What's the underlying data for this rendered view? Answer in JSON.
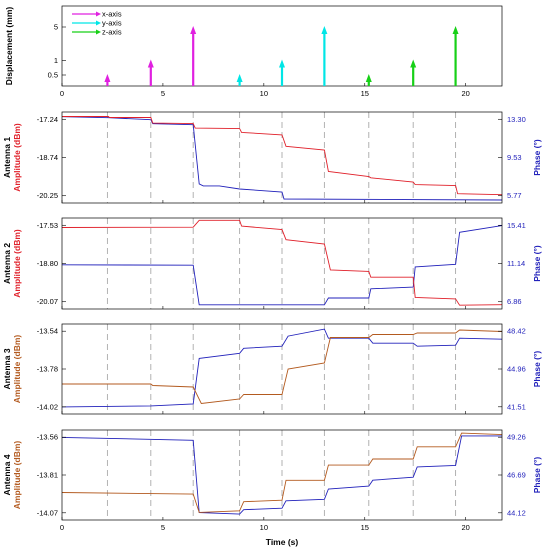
{
  "chart_data": [
    {
      "type": "bar",
      "ylabel": "Displacement (mm)",
      "yticks": [
        "0.5",
        "1",
        "5"
      ],
      "xticks": [
        "0",
        "5",
        "10",
        "15",
        "20"
      ],
      "xlim": [
        0,
        21.8
      ],
      "legend": {
        "placement": "top-left",
        "entries": [
          "x-axis",
          "y-axis",
          "z-axis"
        ]
      },
      "colors": {
        "x-axis": "#e020e0",
        "y-axis": "#00e6e6",
        "z-axis": "#17d017"
      },
      "series": [
        {
          "name": "x-axis",
          "x": [
            2.25,
            4.4,
            6.5
          ],
          "values": [
            0.5,
            1,
            5
          ]
        },
        {
          "name": "y-axis",
          "x": [
            8.8,
            10.9,
            13.0
          ],
          "values": [
            0.5,
            1,
            5
          ]
        },
        {
          "name": "z-axis",
          "x": [
            15.2,
            17.4,
            19.5
          ],
          "values": [
            0.5,
            1,
            5
          ]
        }
      ]
    },
    {
      "type": "line",
      "antenna_label": "Antenna 1",
      "ylabel_left": "Amplitude (dBm)",
      "ylabel_right": "Phase (°)",
      "yticks_left": [
        "-17.24",
        "-18.74",
        "-20.25"
      ],
      "yticks_right": [
        "13.30",
        "9.53",
        "5.77"
      ],
      "ylim_left": [
        -20.55,
        -16.94
      ],
      "ylim_right": [
        5.0,
        14.07
      ],
      "xlim": [
        0,
        21.8
      ],
      "colors": {
        "amplitude": "#e0202a",
        "phase": "#2222bb"
      },
      "amplitude": {
        "x": [
          0,
          2.3,
          2.35,
          4.4,
          4.5,
          6.5,
          6.6,
          8.8,
          8.9,
          10.9,
          11.1,
          13.0,
          13.2,
          15.2,
          15.3,
          17.4,
          17.5,
          19.5,
          19.6,
          21.8
        ],
        "y": [
          -17.12,
          -17.12,
          -17.16,
          -17.16,
          -17.38,
          -17.4,
          -17.58,
          -17.6,
          -17.75,
          -17.85,
          -18.3,
          -18.45,
          -19.3,
          -19.5,
          -19.55,
          -19.72,
          -19.82,
          -19.86,
          -20.18,
          -20.22
        ]
      },
      "phase": {
        "x": [
          0,
          2.3,
          4.4,
          4.5,
          6.5,
          6.8,
          7.0,
          7.8,
          8.8,
          10.9,
          11.0,
          21.8
        ],
        "y": [
          13.6,
          13.5,
          13.3,
          12.9,
          12.8,
          6.9,
          6.7,
          6.7,
          6.4,
          6.1,
          5.4,
          5.3
        ]
      }
    },
    {
      "type": "line",
      "antenna_label": "Antenna 2",
      "ylabel_left": "Amplitude (dBm)",
      "ylabel_right": "Phase (°)",
      "yticks_left": [
        "-17.53",
        "-18.80",
        "-20.07"
      ],
      "yticks_right": [
        "15.41",
        "11.14",
        "6.86"
      ],
      "ylim_left": [
        -20.35,
        -17.2
      ],
      "ylim_right": [
        5.9,
        16.7
      ],
      "xlim": [
        0,
        21.8
      ],
      "colors": {
        "amplitude": "#e0202a",
        "phase": "#2222bb"
      },
      "amplitude": {
        "x": [
          0,
          6.5,
          6.8,
          8.8,
          8.9,
          10.9,
          11.1,
          13.0,
          13.3,
          15.2,
          15.3,
          17.4,
          17.5,
          19.5,
          19.7,
          21.8
        ],
        "y": [
          -17.53,
          -17.52,
          -17.28,
          -17.28,
          -17.48,
          -17.6,
          -17.95,
          -18.1,
          -19.0,
          -19.05,
          -19.25,
          -19.25,
          -19.95,
          -20.0,
          -20.22,
          -20.2
        ]
      },
      "phase": {
        "x": [
          0,
          6.5,
          6.8,
          13.0,
          13.2,
          15.2,
          15.3,
          17.4,
          17.5,
          19.5,
          19.7,
          21.8
        ],
        "y": [
          11.14,
          11.1,
          6.4,
          6.4,
          7.2,
          7.2,
          8.3,
          8.5,
          10.9,
          11.2,
          15.0,
          15.8
        ]
      }
    },
    {
      "type": "line",
      "antenna_label": "Antenna 3",
      "ylabel_left": "Amplitude (dBm)",
      "ylabel_right": "Phase (°)",
      "yticks_left": [
        "-13.54",
        "-13.78",
        "-14.02"
      ],
      "yticks_right": [
        "48.42",
        "44.96",
        "41.51"
      ],
      "ylim_left": [
        -14.1,
        -13.5
      ],
      "ylim_right": [
        40.5,
        49.4
      ],
      "xlim": [
        0,
        21.8
      ],
      "colors": {
        "amplitude": "#b35a1f",
        "phase": "#2222bb"
      },
      "amplitude": {
        "x": [
          0,
          4.4,
          4.5,
          6.5,
          6.9,
          8.8,
          9.0,
          10.9,
          11.2,
          13.0,
          13.3,
          15.2,
          15.4,
          17.4,
          17.6,
          19.5,
          19.7,
          21.8
        ],
        "y": [
          -13.9,
          -13.9,
          -13.91,
          -13.92,
          -14.03,
          -14.0,
          -13.97,
          -13.97,
          -13.8,
          -13.76,
          -13.59,
          -13.59,
          -13.57,
          -13.57,
          -13.56,
          -13.56,
          -13.54,
          -13.55
        ]
      },
      "phase": {
        "x": [
          0,
          4.4,
          6.5,
          6.8,
          8.8,
          9.0,
          10.9,
          11.2,
          13.0,
          13.2,
          15.2,
          15.4,
          17.4,
          17.6,
          19.5,
          19.7,
          21.8
        ],
        "y": [
          41.2,
          41.3,
          41.5,
          46.0,
          46.5,
          47.0,
          47.2,
          48.2,
          48.9,
          48.0,
          48.0,
          47.5,
          47.5,
          47.2,
          47.3,
          48.0,
          47.9
        ]
      }
    },
    {
      "type": "line",
      "antenna_label": "Antenna 4",
      "ylabel_left": "Amplitude (dBm)",
      "ylabel_right": "Phase (°)",
      "yticks_left": [
        "-13.56",
        "-13.81",
        "-14.07"
      ],
      "yticks_right": [
        "49.26",
        "46.69",
        "44.12"
      ],
      "ylim_left": [
        -14.12,
        -13.53
      ],
      "ylim_right": [
        43.6,
        49.7
      ],
      "xlim": [
        0,
        21.8
      ],
      "colors": {
        "amplitude": "#b35a1f",
        "phase": "#2222bb"
      },
      "amplitude": {
        "x": [
          0,
          6.5,
          6.8,
          8.8,
          9.0,
          10.9,
          11.1,
          13.0,
          13.2,
          15.2,
          15.4,
          17.4,
          17.6,
          19.5,
          19.8,
          21.8
        ],
        "y": [
          -13.94,
          -13.95,
          -14.07,
          -14.06,
          -14.0,
          -13.99,
          -13.86,
          -13.86,
          -13.76,
          -13.76,
          -13.72,
          -13.72,
          -13.64,
          -13.64,
          -13.55,
          -13.56
        ]
      },
      "phase": {
        "x": [
          0,
          6.5,
          6.8,
          8.8,
          9.0,
          10.9,
          11.1,
          13.0,
          13.2,
          15.2,
          15.4,
          17.4,
          17.6,
          19.5,
          19.8,
          21.8
        ],
        "y": [
          49.2,
          49.0,
          44.1,
          44.0,
          44.3,
          44.4,
          44.9,
          45.0,
          45.7,
          45.9,
          46.3,
          46.5,
          47.2,
          47.3,
          49.3,
          49.3
        ]
      }
    }
  ],
  "xaxis": {
    "label": "Time (s)",
    "ticks": [
      "0",
      "5",
      "10",
      "15",
      "20"
    ],
    "values": [
      0,
      5,
      10,
      15,
      20
    ]
  },
  "step_times": [
    2.25,
    4.4,
    6.5,
    8.8,
    10.9,
    13.0,
    15.2,
    17.4,
    19.5
  ]
}
